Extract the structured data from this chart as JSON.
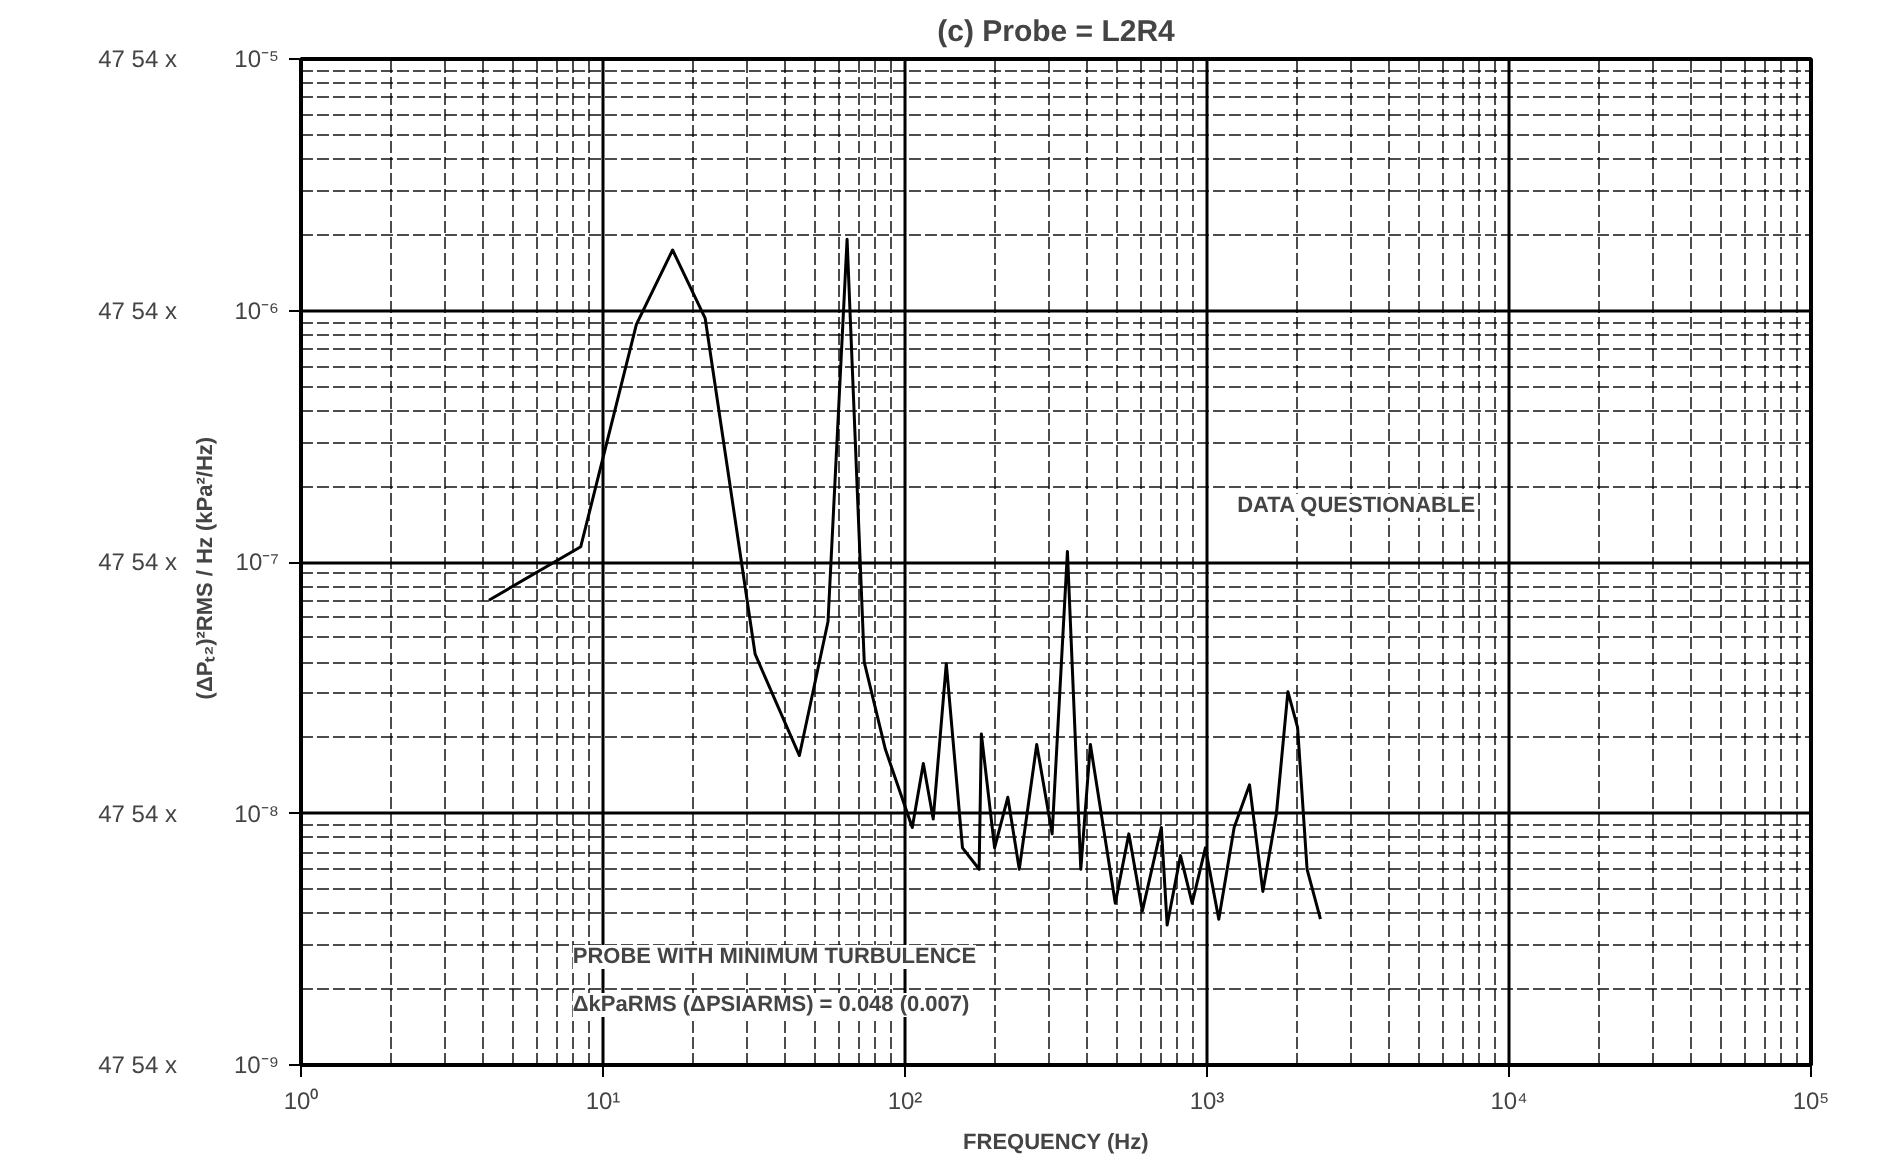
{
  "chart_data": {
    "type": "line",
    "title": "(c) Probe = L2R4",
    "xlabel": "FREQUENCY (Hz)",
    "ylabel": "(ΔPₜ₂)²RMS / Hz   (kPa²/Hz)",
    "log": "xy",
    "grid": true,
    "marker": "none",
    "line_style": "solid",
    "xlim": [
      1,
      100000
    ],
    "ylim": [
      1e-09,
      1e-05
    ],
    "xticks": [
      {
        "value": 1,
        "label": "10⁰"
      },
      {
        "value": 10,
        "label": "10¹"
      },
      {
        "value": 100,
        "label": "10²"
      },
      {
        "value": 1000,
        "label": "10³"
      },
      {
        "value": 10000,
        "label": "10⁴"
      },
      {
        "value": 100000,
        "label": "10⁵"
      }
    ],
    "yticks": [
      {
        "value": 1e-09,
        "label": "10⁻⁹"
      },
      {
        "value": 1e-08,
        "label": "10⁻⁸"
      },
      {
        "value": 1e-07,
        "label": "10⁻⁷"
      },
      {
        "value": 1e-06,
        "label": "10⁻⁶"
      },
      {
        "value": 1e-05,
        "label": "10⁻⁵"
      }
    ],
    "annotations": [
      "DATA QUESTIONABLE",
      "PROBE WITH MINIMUM TURBULENCE",
      "ΔkPaRMS (ΔPSIARMS) = 0.048 (0.007)",
      "47 54 x",
      "47 54 x",
      "47 54 x",
      "47 54 x",
      "47 54 x"
    ],
    "series": [
      {
        "color": "#000000",
        "x": [
          4.19,
          8.44,
          12.9,
          17.0,
          21.8,
          31.9,
          44.7,
          55.6,
          64.3,
          73.3,
          86.1,
          105.7,
          115,
          124,
          137,
          155,
          176,
          179,
          198,
          219,
          239,
          273,
          307,
          345,
          382,
          411,
          497,
          551,
          611,
          706,
          738,
          817,
          893,
          988,
          1094,
          1230,
          1383,
          1531,
          1698,
          1853,
          1995,
          2145,
          2375
        ],
        "values": [
          7.05e-08,
          1.15e-07,
          8.8e-07,
          1.74e-06,
          9.3e-07,
          4.3e-08,
          1.7e-08,
          5.8e-08,
          1.92e-06,
          4e-08,
          1.8e-08,
          8.8e-09,
          1.58e-08,
          9.5e-09,
          3.94e-08,
          7.3e-09,
          6e-09,
          2.07e-08,
          7.3e-09,
          1.16e-08,
          6e-09,
          1.88e-08,
          8.3e-09,
          1.1e-07,
          6e-09,
          1.88e-08,
          4.4e-09,
          8.3e-09,
          4.1e-09,
          8.8e-09,
          3.6e-09,
          6.8e-09,
          4.4e-09,
          7.3e-09,
          3.8e-09,
          8.8e-09,
          1.3e-08,
          4.9e-09,
          1e-08,
          3.05e-08,
          2.2e-08,
          6e-09,
          3.8e-09
        ]
      }
    ]
  }
}
